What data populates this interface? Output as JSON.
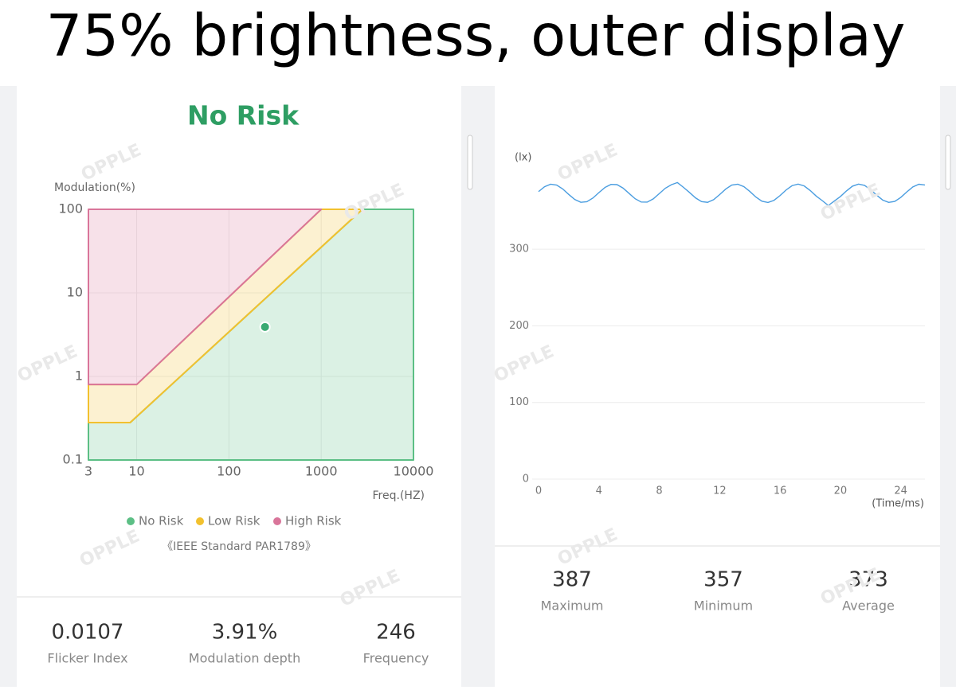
{
  "header": {
    "title": "75% brightness, outer display"
  },
  "watermark": "OPPLE",
  "chart_data": [
    {
      "type": "risk",
      "title": "No Risk",
      "note": "《IEEE Standard PAR1789》",
      "y_label": "Modulation(%)",
      "x_label": "Freq.(HZ)",
      "x_scale": "log",
      "y_scale": "log",
      "grid": true,
      "xlim": [
        3,
        10000
      ],
      "ylim": [
        0.1,
        100
      ],
      "xticks": [
        3,
        10,
        100,
        1000,
        10000
      ],
      "yticks": [
        0.1,
        1,
        10,
        100
      ],
      "series": [
        {
          "name": "No Risk",
          "color": "#5cbf85",
          "x": [
            3,
            8.5,
            2800,
            10000,
            10000,
            3
          ],
          "values": [
            0.28,
            0.28,
            100,
            100,
            0.1,
            0.1
          ]
        },
        {
          "name": "Low Risk",
          "color": "#f2c12e",
          "x": [
            3,
            10,
            1000,
            2800,
            8.5,
            3
          ],
          "values": [
            0.8,
            0.8,
            100,
            100,
            0.28,
            0.28
          ]
        },
        {
          "name": "High Risk",
          "color": "#d9759a",
          "x": [
            3,
            10,
            1000,
            3
          ],
          "values": [
            0.8,
            0.8,
            100,
            100
          ]
        }
      ],
      "point": {
        "x": 246,
        "y": 3.91,
        "color": "#3aaa72"
      },
      "stats": [
        {
          "value": 0.0107,
          "label": "Flicker Index"
        },
        {
          "value": "3.91%",
          "label": "Modulation depth"
        },
        {
          "value": 246,
          "label": "Frequency"
        }
      ]
    },
    {
      "type": "line",
      "y_label": "(lx)",
      "x_label": "(Time/ms)",
      "grid": true,
      "xlim": [
        0,
        25.6
      ],
      "ylim": [
        0,
        430
      ],
      "xticks": [
        0,
        4,
        8,
        12,
        16,
        20,
        24
      ],
      "yticks": [
        0,
        100,
        200,
        300
      ],
      "x": [
        0,
        0.4,
        0.8,
        1.2,
        1.6,
        2,
        2.4,
        2.8,
        3.2,
        3.6,
        4,
        4.4,
        4.8,
        5.2,
        5.6,
        6,
        6.4,
        6.8,
        7.2,
        7.6,
        8,
        8.4,
        8.8,
        9.2,
        9.6,
        10,
        10.4,
        10.8,
        11.2,
        11.6,
        12,
        12.4,
        12.8,
        13.2,
        13.6,
        14,
        14.4,
        14.8,
        15.2,
        15.6,
        16,
        16.4,
        16.8,
        17.2,
        17.6,
        18,
        18.4,
        18.8,
        19.2,
        19.6,
        20,
        20.4,
        20.8,
        21.2,
        21.6,
        22,
        22.4,
        22.8,
        23.2,
        23.6,
        24,
        24.4,
        24.8,
        25.2,
        25.6
      ],
      "series": [
        {
          "name": null,
          "color": "#4a9de0",
          "values": [
            375.2,
            381.6,
            384.9,
            383.7,
            378.7,
            371.5,
            364.9,
            361.3,
            362.0,
            366.8,
            373.9,
            380.6,
            384.6,
            384.3,
            379.8,
            372.8,
            365.9,
            361.6,
            361.5,
            365.7,
            372.6,
            379.6,
            384.2,
            387.0,
            380.8,
            374.1,
            367.0,
            362.1,
            361.2,
            364.7,
            371.3,
            378.5,
            383.7,
            384.9,
            381.7,
            375.4,
            368.1,
            362.7,
            361.0,
            363.8,
            370.0,
            377.3,
            383.0,
            385.0,
            382.6,
            376.6,
            369.3,
            363.4,
            357.0,
            363.0,
            368.8,
            376.1,
            382.3,
            385.0,
            383.3,
            377.8,
            370.6,
            364.2,
            361.1,
            362.4,
            367.6,
            374.8,
            381.3,
            384.8,
            383.9
          ]
        }
      ],
      "stats": [
        {
          "value": 387,
          "label": "Maximum"
        },
        {
          "value": 357,
          "label": "Minimum"
        },
        {
          "value": 373,
          "label": "Average"
        }
      ]
    }
  ]
}
